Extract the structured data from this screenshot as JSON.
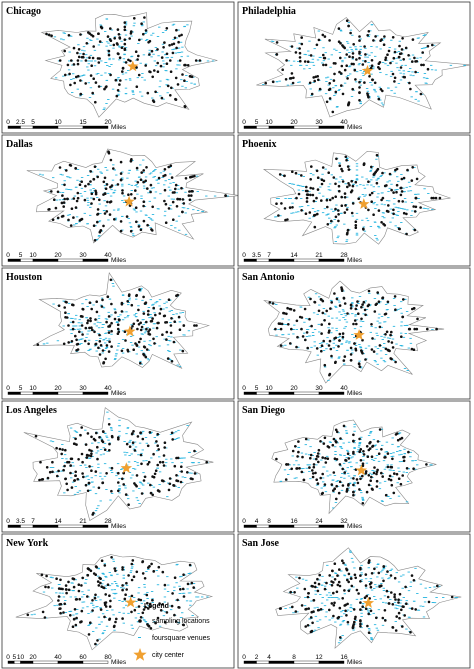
{
  "panels": [
    {
      "name": "Chicago",
      "scale": [
        0,
        2.5,
        5,
        10,
        15,
        20
      ],
      "unit": "Miles"
    },
    {
      "name": "Philadelphia",
      "scale": [
        0,
        5,
        10,
        20,
        30,
        40
      ],
      "unit": "Miles"
    },
    {
      "name": "Dallas",
      "scale": [
        0,
        5,
        10,
        20,
        30,
        40
      ],
      "unit": "Miles"
    },
    {
      "name": "Phoenix",
      "scale": [
        0,
        3.5,
        7,
        14,
        21,
        28
      ],
      "unit": "Miles"
    },
    {
      "name": "Houston",
      "scale": [
        0,
        5,
        10,
        20,
        30,
        40
      ],
      "unit": "Miles"
    },
    {
      "name": "San Antonio",
      "scale": [
        0,
        5,
        10,
        20,
        30,
        40
      ],
      "unit": "Miles"
    },
    {
      "name": "Los Angeles",
      "scale": [
        0,
        3.5,
        7,
        14,
        21,
        28
      ],
      "unit": "Miles"
    },
    {
      "name": "San Diego",
      "scale": [
        0,
        4,
        8,
        16,
        24,
        32
      ],
      "unit": "Miles"
    },
    {
      "name": "New York",
      "scale": [
        0,
        5,
        10,
        20,
        40,
        60,
        80
      ],
      "unit": "Miles"
    },
    {
      "name": "San Jose",
      "scale": [
        0,
        2,
        4,
        8,
        12,
        16
      ],
      "unit": "Miles"
    }
  ],
  "legend": {
    "title": "Legend",
    "items": [
      "sampling locations",
      "foursquare venues",
      "city center"
    ]
  }
}
